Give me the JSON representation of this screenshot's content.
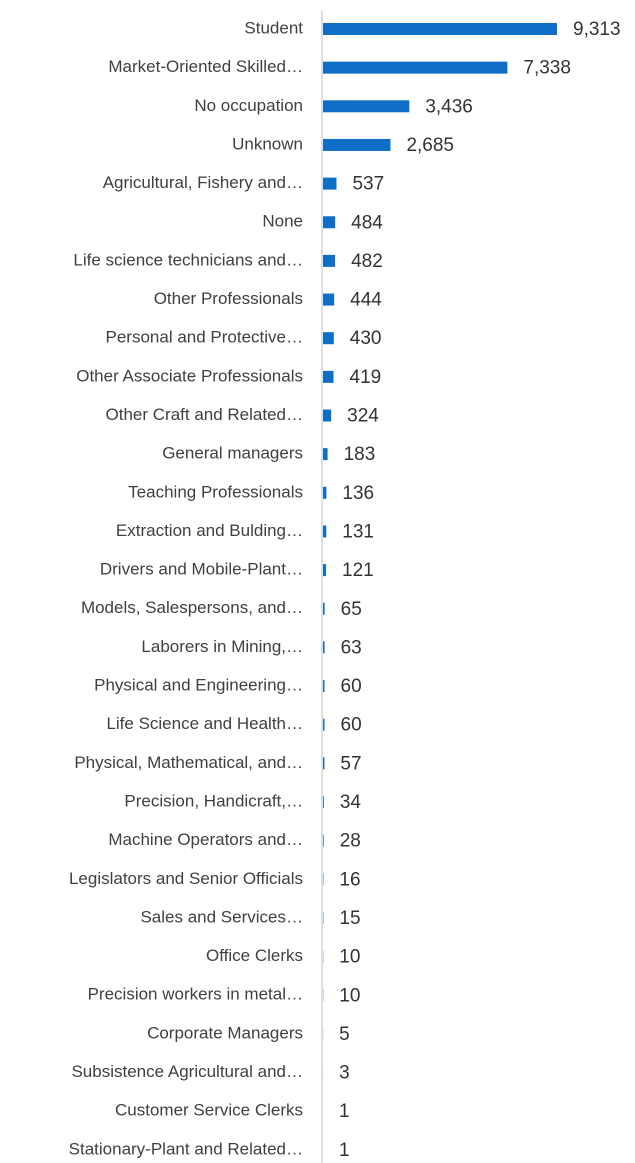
{
  "chart_data": {
    "type": "bar",
    "orientation": "horizontal",
    "color": "#0f6fc6",
    "categories": [
      "Student",
      "Market-Oriented Skilled…",
      "No occupation",
      "Unknown",
      "Agricultural, Fishery and…",
      "None",
      "Life science technicians and…",
      "Other Professionals",
      "Personal and Protective…",
      "Other Associate Professionals",
      "Other Craft and Related…",
      "General managers",
      "Teaching Professionals",
      "Extraction and Bulding…",
      "Drivers and Mobile-Plant…",
      "Models, Salespersons, and…",
      "Laborers in Mining,…",
      "Physical and Engineering…",
      "Life Science and Health…",
      "Physical, Mathematical, and…",
      "Precision, Handicraft,…",
      "Machine Operators and…",
      "Legislators and Senior Officials",
      "Sales and Services…",
      "Office Clerks",
      "Precision workers in metal…",
      "Corporate Managers",
      "Subsistence Agricultural and…",
      "Customer Service Clerks",
      "Stationary-Plant and Related…"
    ],
    "values": [
      9313,
      7338,
      3436,
      2685,
      537,
      484,
      482,
      444,
      430,
      419,
      324,
      183,
      136,
      131,
      121,
      65,
      63,
      60,
      60,
      57,
      34,
      28,
      16,
      15,
      10,
      10,
      5,
      3,
      1,
      1
    ],
    "value_labels": [
      "9,313",
      "7,338",
      "3,436",
      "2,685",
      "537",
      "484",
      "482",
      "444",
      "430",
      "419",
      "324",
      "183",
      "136",
      "131",
      "121",
      "65",
      "63",
      "60",
      "60",
      "57",
      "34",
      "28",
      "16",
      "15",
      "10",
      "10",
      "5",
      "3",
      "1",
      "1"
    ]
  }
}
